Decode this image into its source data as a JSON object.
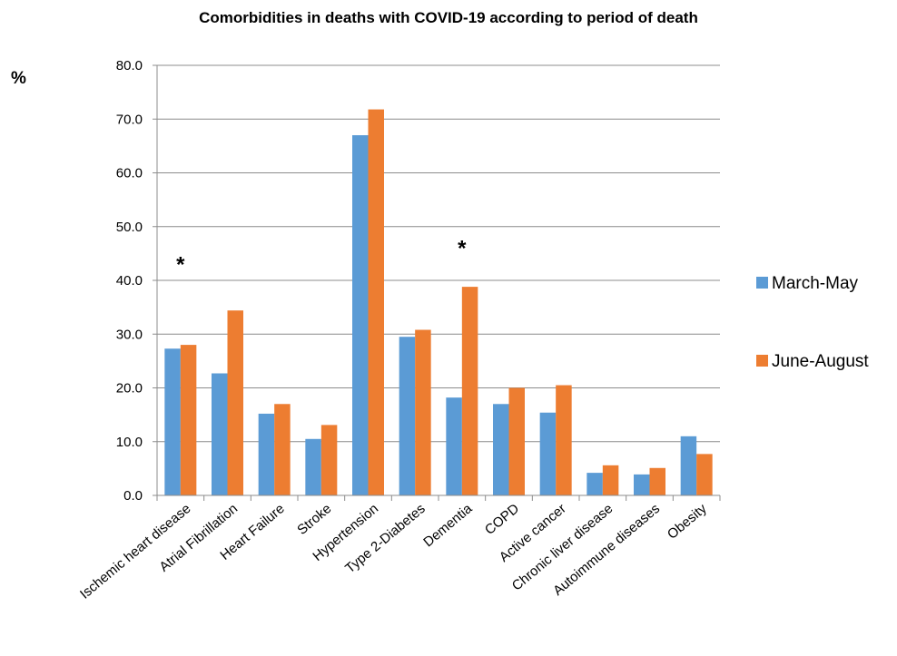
{
  "chart_data": {
    "type": "bar",
    "title": "Comorbidities in deaths with COVID-19 according to period of death",
    "ylabel": "%",
    "ylim": [
      0,
      80
    ],
    "yticks": [
      "0.0",
      "10.0",
      "20.0",
      "30.0",
      "40.0",
      "50.0",
      "60.0",
      "70.0",
      "80.0"
    ],
    "grid": true,
    "legend_position": "right",
    "categories": [
      "Ischemic heart disease",
      "Atrial Fibrillation",
      "Heart Failure",
      "Stroke",
      "Hypertension",
      "Type 2-Diabetes",
      "Dementia",
      "COPD",
      "Active cancer",
      "Chronic liver disease",
      "Autoimmune diseases",
      "Obesity"
    ],
    "series": [
      {
        "name": "March-May",
        "color": "#5b9bd5",
        "values": [
          27.3,
          22.7,
          15.2,
          10.5,
          67.0,
          29.5,
          18.2,
          17.0,
          15.4,
          4.2,
          3.9,
          11.0
        ]
      },
      {
        "name": "June-August",
        "color": "#ed7d31",
        "values": [
          28.0,
          34.4,
          17.0,
          13.1,
          71.8,
          30.8,
          38.8,
          20.0,
          20.5,
          5.6,
          5.1,
          7.7
        ]
      }
    ],
    "annotations": [
      {
        "text": "*",
        "category": "Ischemic heart disease",
        "y": 44
      },
      {
        "text": "*",
        "category": "Dementia",
        "y": 47
      }
    ]
  }
}
